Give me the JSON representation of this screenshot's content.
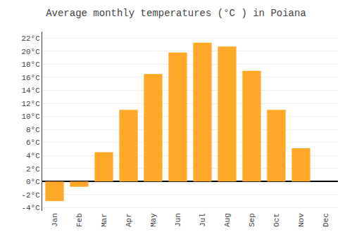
{
  "chart_data": {
    "type": "bar",
    "title": "Average monthly temperatures (°C ) in Poiana",
    "categories": [
      "Jan",
      "Feb",
      "Mar",
      "Apr",
      "May",
      "Jun",
      "Jul",
      "Aug",
      "Sep",
      "Oct",
      "Nov",
      "Dec"
    ],
    "values": [
      -3.0,
      -0.8,
      4.5,
      11.0,
      16.5,
      19.8,
      21.3,
      20.7,
      17.0,
      11.0,
      5.1,
      0.0
    ],
    "color": "#FFA726",
    "ylim": [
      -4.5,
      23
    ],
    "yticks": [
      {
        "value": -4,
        "label": "-4°C"
      },
      {
        "value": -2,
        "label": "-2°C"
      },
      {
        "value": 0,
        "label": "0°C"
      },
      {
        "value": 2,
        "label": "2°C"
      },
      {
        "value": 4,
        "label": "4°C"
      },
      {
        "value": 6,
        "label": "6°C"
      },
      {
        "value": 8,
        "label": "8°C"
      },
      {
        "value": 10,
        "label": "10°C"
      },
      {
        "value": 12,
        "label": "12°C"
      },
      {
        "value": 14,
        "label": "14°C"
      },
      {
        "value": 16,
        "label": "16°C"
      },
      {
        "value": 18,
        "label": "18°C"
      },
      {
        "value": 20,
        "label": "20°C"
      },
      {
        "value": 22,
        "label": "22°C"
      }
    ],
    "grid": true
  }
}
